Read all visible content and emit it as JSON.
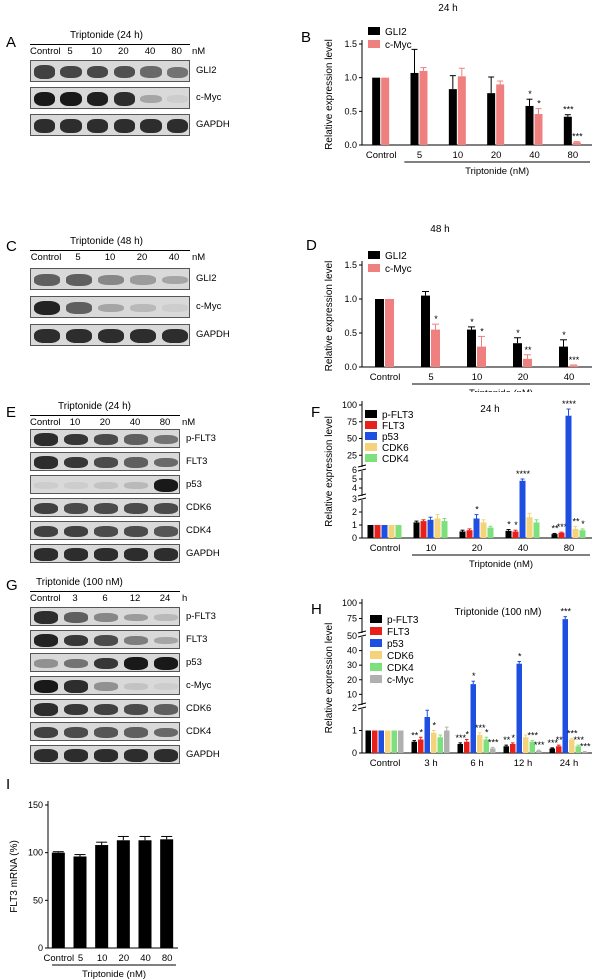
{
  "colors": {
    "black": "#000000",
    "salmon": "#f08080",
    "red": "#e8201c",
    "blue": "#1f4fe0",
    "yellow": "#f5d37a",
    "green": "#7de07d",
    "gray": "#b0b0b0"
  },
  "panels": {
    "A": {
      "letter": "A",
      "title": "Triptonide (24 h)",
      "lanes": [
        "Control",
        "5",
        "10",
        "20",
        "40",
        "80"
      ],
      "unit": "nM",
      "strips": [
        {
          "label": "GLI2",
          "intensity": [
            0.75,
            0.72,
            0.72,
            0.68,
            0.55,
            0.5
          ]
        },
        {
          "label": "c-Myc",
          "intensity": [
            0.95,
            0.95,
            0.92,
            0.85,
            0.25,
            0.05
          ]
        },
        {
          "label": "GAPDH",
          "intensity": [
            0.85,
            0.85,
            0.85,
            0.85,
            0.85,
            0.85
          ]
        }
      ]
    },
    "C": {
      "letter": "C",
      "title": "Triptonide (48 h)",
      "lanes": [
        "Control",
        "5",
        "10",
        "20",
        "40"
      ],
      "unit": "nM",
      "strips": [
        {
          "label": "GLI2",
          "intensity": [
            0.6,
            0.6,
            0.4,
            0.3,
            0.25
          ]
        },
        {
          "label": "c-Myc",
          "intensity": [
            0.9,
            0.6,
            0.25,
            0.15,
            0.05
          ]
        },
        {
          "label": "GAPDH",
          "intensity": [
            0.85,
            0.85,
            0.85,
            0.85,
            0.85
          ]
        }
      ]
    },
    "E": {
      "letter": "E",
      "title": "Triptonide (24 h)",
      "lanes": [
        "Control",
        "10",
        "20",
        "40",
        "80"
      ],
      "unit": "nM",
      "strips": [
        {
          "label": "p-FLT3",
          "intensity": [
            0.85,
            0.8,
            0.7,
            0.6,
            0.5
          ]
        },
        {
          "label": "FLT3",
          "intensity": [
            0.85,
            0.8,
            0.7,
            0.6,
            0.55
          ]
        },
        {
          "label": "p53",
          "intensity": [
            0.05,
            0.05,
            0.1,
            0.15,
            0.95
          ]
        },
        {
          "label": "CDK6",
          "intensity": [
            0.75,
            0.7,
            0.7,
            0.7,
            0.7
          ]
        },
        {
          "label": "CDK4",
          "intensity": [
            0.75,
            0.75,
            0.7,
            0.7,
            0.65
          ]
        },
        {
          "label": "GAPDH",
          "intensity": [
            0.85,
            0.85,
            0.85,
            0.85,
            0.85
          ]
        }
      ]
    },
    "G": {
      "letter": "G",
      "title": "Triptonide (100 nM)",
      "lanes": [
        "Control",
        "3",
        "6",
        "12",
        "24"
      ],
      "unit": "h",
      "strips": [
        {
          "label": "p-FLT3",
          "intensity": [
            0.85,
            0.6,
            0.4,
            0.3,
            0.15
          ]
        },
        {
          "label": "FLT3",
          "intensity": [
            0.9,
            0.8,
            0.7,
            0.45,
            0.25
          ]
        },
        {
          "label": "p53",
          "intensity": [
            0.35,
            0.5,
            0.8,
            0.95,
            0.95
          ]
        },
        {
          "label": "c-Myc",
          "intensity": [
            0.95,
            0.85,
            0.35,
            0.1,
            0.05
          ]
        },
        {
          "label": "CDK6",
          "intensity": [
            0.85,
            0.8,
            0.75,
            0.7,
            0.6
          ]
        },
        {
          "label": "CDK4",
          "intensity": [
            0.75,
            0.7,
            0.65,
            0.6,
            0.55
          ]
        },
        {
          "label": "GAPDH",
          "intensity": [
            0.85,
            0.85,
            0.85,
            0.85,
            0.85
          ]
        }
      ]
    }
  },
  "chart_data": [
    {
      "panel": "B",
      "type": "bar",
      "title": "24 h",
      "xlabel": "Triptonide (nM)",
      "ylabel": "Relative expression level",
      "categories": [
        "Control",
        "5",
        "10",
        "20",
        "40",
        "80"
      ],
      "ylim": [
        0,
        1.5
      ],
      "yticks": [
        "0.0",
        "0.5",
        "1.0",
        "1.5"
      ],
      "legend_position": "top-left",
      "series": [
        {
          "name": "GLI2",
          "color": "#000000",
          "values": [
            1.0,
            1.07,
            0.83,
            0.77,
            0.58,
            0.42
          ],
          "errors": [
            0,
            0.35,
            0.2,
            0.24,
            0.1,
            0.03
          ],
          "stars": [
            "",
            "",
            "",
            "",
            "*",
            "***"
          ]
        },
        {
          "name": "c-Myc",
          "color": "#f08080",
          "values": [
            1.0,
            1.1,
            1.02,
            0.9,
            0.46,
            0.04
          ],
          "errors": [
            0,
            0.05,
            0.12,
            0.05,
            0.08,
            0.01
          ],
          "stars": [
            "",
            "",
            "",
            "",
            "*",
            "***"
          ]
        }
      ]
    },
    {
      "panel": "D",
      "type": "bar",
      "title": "48 h",
      "xlabel": "Triptonide (nM)",
      "ylabel": "Relative expression level",
      "categories": [
        "Control",
        "5",
        "10",
        "20",
        "40"
      ],
      "ylim": [
        0,
        1.5
      ],
      "yticks": [
        "0.0",
        "0.5",
        "1.0",
        "1.5"
      ],
      "legend_position": "top-left",
      "series": [
        {
          "name": "GLI2",
          "color": "#000000",
          "values": [
            1.0,
            1.05,
            0.55,
            0.35,
            0.3
          ],
          "errors": [
            0,
            0.06,
            0.04,
            0.08,
            0.1
          ],
          "stars": [
            "",
            "",
            "*",
            "*",
            "*"
          ]
        },
        {
          "name": "c-Myc",
          "color": "#f08080",
          "values": [
            1.0,
            0.55,
            0.3,
            0.12,
            0.02
          ],
          "errors": [
            0,
            0.08,
            0.15,
            0.06,
            0.01
          ],
          "stars": [
            "",
            "*",
            "*",
            "**",
            "***"
          ]
        }
      ]
    },
    {
      "panel": "F",
      "type": "bar",
      "title": "24 h",
      "xlabel": "Triptonide (nM)",
      "ylabel": "Relative expression level",
      "categories": [
        "Control",
        "10",
        "20",
        "40",
        "80"
      ],
      "yticks": [
        "0",
        "1",
        "2",
        "3",
        "4",
        "5",
        "6",
        "25",
        "50",
        "75",
        "100"
      ],
      "legend_position": "top-left",
      "series": [
        {
          "name": "p-FLT3",
          "color": "#000000",
          "values": [
            1.0,
            1.2,
            0.5,
            0.55,
            0.3
          ],
          "errors": [
            0,
            0.1,
            0.1,
            0.1,
            0.05
          ],
          "stars": [
            "",
            "",
            "",
            "*",
            "**"
          ]
        },
        {
          "name": "FLT3",
          "color": "#e8201c",
          "values": [
            1.0,
            1.3,
            0.6,
            0.5,
            0.4
          ],
          "errors": [
            0,
            0.1,
            0.1,
            0.1,
            0.05
          ],
          "stars": [
            "",
            "",
            "",
            "*",
            "***"
          ]
        },
        {
          "name": "p53",
          "color": "#1f4fe0",
          "values": [
            1.0,
            1.4,
            1.5,
            4.8,
            84
          ],
          "errors": [
            0,
            0.2,
            0.3,
            0.2,
            10
          ],
          "stars": [
            "",
            "",
            "*",
            "****",
            "****"
          ]
        },
        {
          "name": "CDK6",
          "color": "#f5d37a",
          "values": [
            1.0,
            1.5,
            1.2,
            1.6,
            0.7
          ],
          "errors": [
            0,
            0.3,
            0.2,
            0.3,
            0.2
          ],
          "stars": [
            "",
            "",
            "",
            "",
            "**"
          ]
        },
        {
          "name": "CDK4",
          "color": "#7de07d",
          "values": [
            1.0,
            1.3,
            0.8,
            1.2,
            0.6
          ],
          "errors": [
            0,
            0.2,
            0.1,
            0.2,
            0.1
          ],
          "stars": [
            "",
            "",
            "",
            "",
            "*"
          ]
        }
      ]
    },
    {
      "panel": "H",
      "type": "bar",
      "title": "Triptonide (100 nM)",
      "xlabel": "",
      "ylabel": "Relative expression level",
      "categories": [
        "Control",
        "3 h",
        "6 h",
        "12 h",
        "24 h"
      ],
      "yticks": [
        "0",
        "1",
        "2",
        "10",
        "20",
        "30",
        "40",
        "50",
        "75",
        "100"
      ],
      "legend_position": "top-left",
      "series": [
        {
          "name": "p-FLT3",
          "color": "#000000",
          "values": [
            1.0,
            0.5,
            0.4,
            0.3,
            0.2
          ],
          "errors": [
            0,
            0.05,
            0.05,
            0.05,
            0.03
          ],
          "stars": [
            "",
            "**",
            "***",
            "**",
            "***"
          ]
        },
        {
          "name": "FLT3",
          "color": "#e8201c",
          "values": [
            1.0,
            0.6,
            0.5,
            0.4,
            0.3
          ],
          "errors": [
            0,
            0.1,
            0.1,
            0.05,
            0.05
          ],
          "stars": [
            "",
            "*",
            "*",
            "*",
            "**"
          ]
        },
        {
          "name": "p53",
          "color": "#1f4fe0",
          "values": [
            1.0,
            1.6,
            17,
            31,
            74
          ],
          "errors": [
            0,
            0.3,
            2,
            1.5,
            4
          ],
          "stars": [
            "",
            "",
            "*",
            "*",
            "***"
          ]
        },
        {
          "name": "CDK6",
          "color": "#f5d37a",
          "values": [
            1.0,
            0.9,
            0.8,
            0.7,
            0.6
          ],
          "errors": [
            0,
            0.1,
            0.1,
            0.1,
            0.05
          ],
          "stars": [
            "",
            "*",
            "***",
            "",
            "***"
          ]
        },
        {
          "name": "CDK4",
          "color": "#7de07d",
          "values": [
            1.0,
            0.7,
            0.6,
            0.5,
            0.3
          ],
          "errors": [
            0,
            0.1,
            0.1,
            0.05,
            0.05
          ],
          "stars": [
            "",
            "",
            "*",
            "***",
            "***"
          ]
        },
        {
          "name": "c-Myc",
          "color": "#b0b0b0",
          "values": [
            1.0,
            1.0,
            0.2,
            0.1,
            0.05
          ],
          "errors": [
            0,
            0.15,
            0.05,
            0.03,
            0.02
          ],
          "stars": [
            "",
            "",
            "***",
            "***",
            "***"
          ]
        }
      ]
    },
    {
      "panel": "I",
      "type": "bar",
      "title": "",
      "xlabel": "Triptonide (nM)",
      "ylabel": "FLT3 mRNA (%)",
      "categories": [
        "Control",
        "5",
        "10",
        "20",
        "40",
        "80"
      ],
      "ylim": [
        0,
        150
      ],
      "yticks": [
        "0",
        "50",
        "100",
        "150"
      ],
      "series": [
        {
          "color": "#000000",
          "values": [
            100,
            96,
            108,
            113,
            113,
            114
          ],
          "errors": [
            1,
            2,
            3,
            4,
            4,
            3
          ]
        }
      ]
    }
  ]
}
